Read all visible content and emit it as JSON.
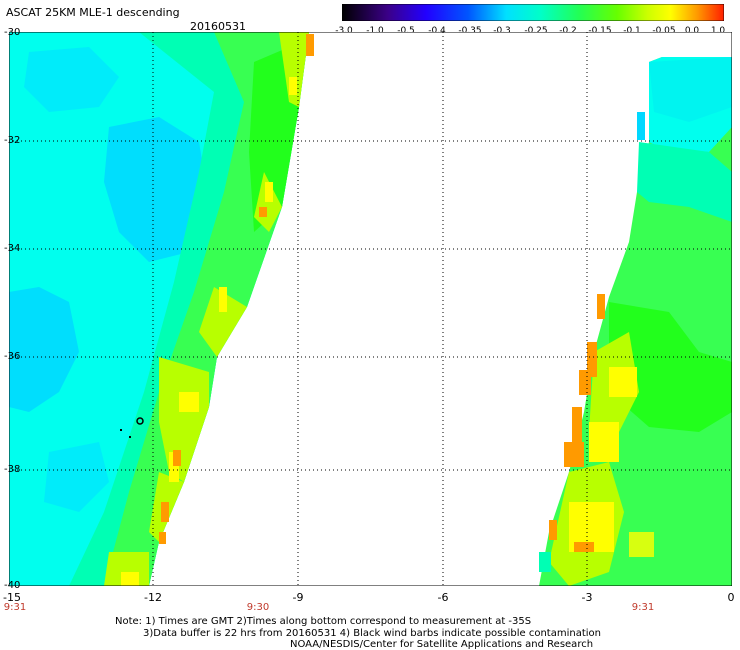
{
  "header": {
    "title": "ASCAT 25KM MLE-1 descending",
    "date": "20160531"
  },
  "colorbar": {
    "labels": [
      "-3.0",
      "-1.0",
      "-0.5",
      "-0.4",
      "-0.35",
      "-0.3",
      "-0.25",
      "-0.2",
      "-0.15",
      "-0.1",
      "-0.05",
      "0.0",
      "1.0"
    ],
    "colors": [
      "#000000",
      "#3b0088",
      "#2200ff",
      "#0055ff",
      "#0099ff",
      "#00e0ff",
      "#00ffc8",
      "#22ff55",
      "#66ff00",
      "#ccff00",
      "#ffff00",
      "#ff9900",
      "#ff1e00"
    ]
  },
  "axes": {
    "lat_ticks": [
      "-30",
      "-32",
      "-34",
      "-36",
      "-38",
      "-40"
    ],
    "lon_ticks": [
      "-15",
      "-12",
      "-9",
      "-6",
      "-3",
      "0"
    ],
    "times": [
      "9:31",
      "9:30",
      "9:31"
    ]
  },
  "map": {
    "lat_range": [
      -30,
      -40
    ],
    "lon_range": [
      -15,
      0
    ],
    "palette": {
      "cyan": "#00ffee",
      "cyan_alt": "#00f4f0",
      "light_blue": "#00d8ff",
      "aqua_green": "#00ffb4",
      "green": "#38ff52",
      "green_bright": "#22ff1c",
      "yellow_green": "#b8ff00",
      "yellow": "#ffff00",
      "orange": "#ff9a00"
    },
    "marker": "black open circle near -12.2, -37.2"
  },
  "notes": {
    "line1": "Note: 1) Times are GMT 2)Times along bottom correspond to measurement at -35S",
    "line2": "3)Data buffer is 22 hrs from 20160531 4) Black wind barbs indicate possible contamination",
    "line3": "NOAA/NESDIS/Center for Satellite Applications and Research"
  }
}
